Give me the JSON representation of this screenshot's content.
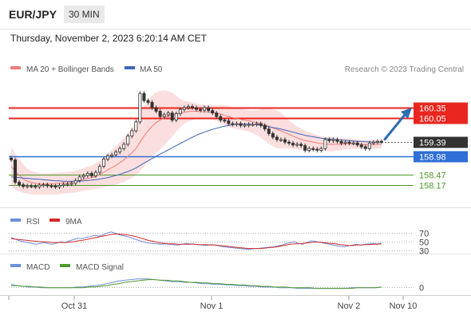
{
  "header": {
    "symbol": "EUR/JPY",
    "timeframe": "30 MIN",
    "datetime": "Thursday, November 2, 2023 6:20:14 AM CET"
  },
  "legend": {
    "ma20_label": "MA 20 + Bollinger Bands",
    "ma50_label": "MA 50",
    "copyright": "Research © 2023 Trading Central",
    "rsi_label": "RSI",
    "rsi_ma_label": "9MA",
    "macd_label": "MACD",
    "macd_signal_label": "MACD Signal"
  },
  "colors": {
    "resistance": "#e8261f",
    "support": "#2f6fd6",
    "target": "#4f9a2b",
    "candle": "#333333",
    "ma20": "#f07b7b",
    "bollinger_fill": "#fbdede",
    "ma50": "#3e67b8",
    "rsi": "#6b8fdc",
    "rsi_ma": "#d62a2a",
    "macd": "#6b8fdc",
    "macd_signal": "#4f9a2b",
    "arrow": "#2e6db4"
  },
  "chart_data": [
    {
      "type": "candlestick",
      "ylim": [
        157.85,
        160.75
      ],
      "x_ticks": [
        "Oct 31",
        "Nov 1",
        "Nov 2",
        "Nov 10"
      ],
      "levels": [
        {
          "label": "160.35",
          "value": 160.35,
          "kind": "resistance"
        },
        {
          "label": "160.05",
          "value": 160.05,
          "kind": "resistance"
        },
        {
          "label": "159.39",
          "value": 159.39,
          "kind": "last"
        },
        {
          "label": "158.98",
          "value": 158.98,
          "kind": "support"
        },
        {
          "label": "158.47",
          "value": 158.47,
          "kind": "target"
        },
        {
          "label": "158.17",
          "value": 158.17,
          "kind": "target"
        }
      ],
      "close": [
        158.88,
        158.25,
        158.18,
        158.13,
        158.15,
        158.14,
        158.12,
        158.17,
        158.18,
        158.15,
        158.14,
        158.12,
        158.16,
        158.19,
        158.2,
        158.22,
        158.3,
        158.4,
        158.44,
        158.5,
        158.43,
        158.53,
        158.7,
        158.9,
        158.99,
        159.02,
        159.1,
        159.2,
        159.32,
        159.55,
        159.7,
        159.95,
        160.75,
        160.55,
        160.5,
        160.35,
        160.25,
        160.1,
        160.15,
        160.2,
        160.0,
        160.18,
        160.3,
        160.35,
        160.38,
        160.35,
        160.3,
        160.28,
        160.35,
        160.27,
        160.2,
        160.1,
        160.0,
        159.98,
        159.9,
        159.88,
        159.9,
        159.85,
        159.86,
        159.88,
        159.88,
        159.9,
        159.85,
        159.75,
        159.62,
        159.52,
        159.45,
        159.45,
        159.38,
        159.35,
        159.3,
        159.32,
        159.28,
        159.15,
        159.2,
        159.18,
        159.15,
        159.2,
        159.45,
        159.42,
        159.45,
        159.4,
        159.35,
        159.38,
        159.35,
        159.36,
        159.3,
        159.25,
        159.2,
        159.35,
        159.38,
        159.4,
        159.39
      ],
      "ma20": [
        158.7,
        158.55,
        158.45,
        158.35,
        158.28,
        158.24,
        158.22,
        158.2,
        158.2,
        158.2,
        158.2,
        158.21,
        158.22,
        158.23,
        158.24,
        158.25,
        158.27,
        158.3,
        158.33,
        158.36,
        158.38,
        158.42,
        158.47,
        158.53,
        158.6,
        158.66,
        158.72,
        158.8,
        158.88,
        158.98,
        159.08,
        159.2,
        159.38,
        159.55,
        159.7,
        159.83,
        159.93,
        160.0,
        160.06,
        160.12,
        160.15,
        160.18,
        160.2,
        160.22,
        160.24,
        160.25,
        160.25,
        160.24,
        160.23,
        160.23,
        160.22,
        160.2,
        160.17,
        160.13,
        160.1,
        160.07,
        160.05,
        160.02,
        160.0,
        159.98,
        159.95,
        159.93,
        159.9,
        159.87,
        159.83,
        159.78,
        159.74,
        159.7,
        159.65,
        159.6,
        159.55,
        159.5,
        159.46,
        159.42,
        159.4,
        159.38,
        159.36,
        159.34,
        159.33,
        159.32,
        159.32,
        159.32,
        159.32,
        159.33,
        159.33,
        159.33,
        159.32,
        159.32,
        159.31,
        159.31,
        159.31,
        159.32,
        159.32
      ],
      "ma50": [
        158.4,
        158.39,
        158.38,
        158.37,
        158.36,
        158.35,
        158.34,
        158.33,
        158.32,
        158.31,
        158.3,
        158.29,
        158.29,
        158.28,
        158.28,
        158.28,
        158.28,
        158.28,
        158.29,
        158.3,
        158.31,
        158.32,
        158.34,
        158.36,
        158.38,
        158.41,
        158.44,
        158.47,
        158.51,
        158.55,
        158.6,
        158.65,
        158.72,
        158.79,
        158.85,
        158.92,
        158.98,
        159.04,
        159.1,
        159.16,
        159.22,
        159.28,
        159.34,
        159.4,
        159.46,
        159.52,
        159.57,
        159.62,
        159.66,
        159.7,
        159.74,
        159.77,
        159.8,
        159.83,
        159.85,
        159.87,
        159.88,
        159.89,
        159.89,
        159.89,
        159.88,
        159.87,
        159.85,
        159.83,
        159.81,
        159.79,
        159.77,
        159.75,
        159.72,
        159.69,
        159.66,
        159.63,
        159.6,
        159.57,
        159.55,
        159.53,
        159.51,
        159.49,
        159.48,
        159.47,
        159.46,
        159.45,
        159.44,
        159.43,
        159.42,
        159.41,
        159.4,
        159.4,
        159.39,
        159.39,
        159.38,
        159.38,
        159.38
      ],
      "bb_band": [
        0.55,
        0.5,
        0.45,
        0.4,
        0.35,
        0.33,
        0.32,
        0.3,
        0.3,
        0.3,
        0.3,
        0.3,
        0.3,
        0.3,
        0.3,
        0.3,
        0.3,
        0.31,
        0.32,
        0.33,
        0.34,
        0.36,
        0.38,
        0.42,
        0.46,
        0.5,
        0.54,
        0.58,
        0.62,
        0.66,
        0.7,
        0.75,
        0.82,
        0.85,
        0.86,
        0.86,
        0.85,
        0.82,
        0.78,
        0.7,
        0.62,
        0.5,
        0.4,
        0.32,
        0.28,
        0.25,
        0.22,
        0.2,
        0.2,
        0.2,
        0.2,
        0.22,
        0.25,
        0.28,
        0.3,
        0.3,
        0.3,
        0.3,
        0.3,
        0.3,
        0.32,
        0.35,
        0.4,
        0.45,
        0.5,
        0.52,
        0.53,
        0.5,
        0.45,
        0.4,
        0.36,
        0.32,
        0.3,
        0.28,
        0.26,
        0.24,
        0.22,
        0.2,
        0.2,
        0.2,
        0.2,
        0.18,
        0.16,
        0.15,
        0.14,
        0.13,
        0.13,
        0.13,
        0.13,
        0.13,
        0.12,
        0.12,
        0.12
      ]
    },
    {
      "type": "line",
      "title": "RSI",
      "levels": [
        70,
        50,
        30
      ],
      "ylim": [
        22,
        82
      ],
      "series": [
        {
          "name": "RSI",
          "values": [
            60,
            56,
            52,
            50,
            48,
            46,
            44,
            46,
            48,
            45,
            44,
            47,
            50,
            48,
            52,
            55,
            58,
            57,
            60,
            62,
            65,
            63,
            66,
            70,
            73,
            70,
            66,
            64,
            62,
            58,
            55,
            52,
            49,
            47,
            46,
            45,
            44,
            45,
            44,
            43,
            42,
            44,
            46,
            45,
            44,
            43,
            42,
            41,
            43,
            42,
            40,
            38,
            37,
            36,
            35,
            34,
            33,
            32,
            33,
            34,
            35,
            36,
            37,
            38,
            40,
            42,
            45,
            48,
            50,
            46,
            44,
            48,
            52,
            51,
            49,
            47,
            45,
            43,
            41,
            39,
            38,
            40,
            42,
            44,
            42,
            44,
            45,
            46,
            45,
            46
          ]
        },
        {
          "name": "9MA",
          "values": [
            57,
            56,
            55,
            54,
            53,
            52,
            51,
            50,
            50,
            49,
            48,
            48,
            48,
            48,
            49,
            50,
            52,
            53,
            55,
            57,
            59,
            61,
            63,
            65,
            67,
            68,
            68,
            67,
            66,
            64,
            62,
            59,
            56,
            53,
            51,
            49,
            47,
            46,
            45,
            45,
            44,
            44,
            44,
            44,
            44,
            43,
            43,
            43,
            42,
            42,
            41,
            40,
            39,
            38,
            37,
            36,
            35,
            34,
            34,
            34,
            34,
            35,
            36,
            37,
            38,
            40,
            42,
            44,
            45,
            45,
            46,
            47,
            48,
            49,
            49,
            48,
            47,
            46,
            45,
            43,
            42,
            41,
            41,
            42,
            42,
            43,
            43,
            44,
            44,
            45
          ]
        }
      ]
    },
    {
      "type": "line",
      "title": "MACD",
      "levels": [
        0
      ],
      "ylim": [
        -0.12,
        0.2
      ],
      "series": [
        {
          "name": "MACD",
          "values": [
            0.04,
            0.02,
            0.01,
            0.0,
            0.0,
            -0.01,
            -0.01,
            -0.01,
            -0.01,
            -0.01,
            -0.01,
            0.0,
            0.0,
            0.01,
            0.02,
            0.03,
            0.05,
            0.07,
            0.09,
            0.1,
            0.11,
            0.12,
            0.12,
            0.12,
            0.11,
            0.1,
            0.09,
            0.08,
            0.08,
            0.07,
            0.07,
            0.06,
            0.05,
            0.05,
            0.04,
            0.04,
            0.03,
            0.03,
            0.02,
            0.02,
            0.01,
            0.01,
            0.0,
            0.0,
            0.0,
            -0.01,
            -0.01,
            -0.01,
            -0.02,
            -0.02,
            -0.02,
            -0.02,
            -0.02,
            -0.02,
            -0.02,
            -0.02,
            -0.02,
            -0.01,
            -0.01,
            -0.01,
            -0.01,
            -0.01,
            0.0
          ]
        },
        {
          "name": "MACD Signal",
          "values": [
            0.02,
            0.02,
            0.01,
            0.01,
            0.0,
            0.0,
            -0.01,
            -0.01,
            -0.01,
            -0.01,
            -0.01,
            -0.01,
            -0.01,
            0.0,
            0.0,
            0.01,
            0.02,
            0.04,
            0.05,
            0.07,
            0.08,
            0.09,
            0.1,
            0.11,
            0.11,
            0.1,
            0.1,
            0.09,
            0.09,
            0.08,
            0.07,
            0.07,
            0.06,
            0.06,
            0.05,
            0.05,
            0.04,
            0.04,
            0.03,
            0.03,
            0.02,
            0.02,
            0.01,
            0.01,
            0.0,
            0.0,
            0.0,
            -0.01,
            -0.01,
            -0.01,
            -0.01,
            -0.02,
            -0.02,
            -0.02,
            -0.02,
            -0.02,
            -0.02,
            -0.02,
            -0.01,
            -0.01,
            -0.01,
            -0.01,
            0.0
          ]
        }
      ]
    }
  ]
}
